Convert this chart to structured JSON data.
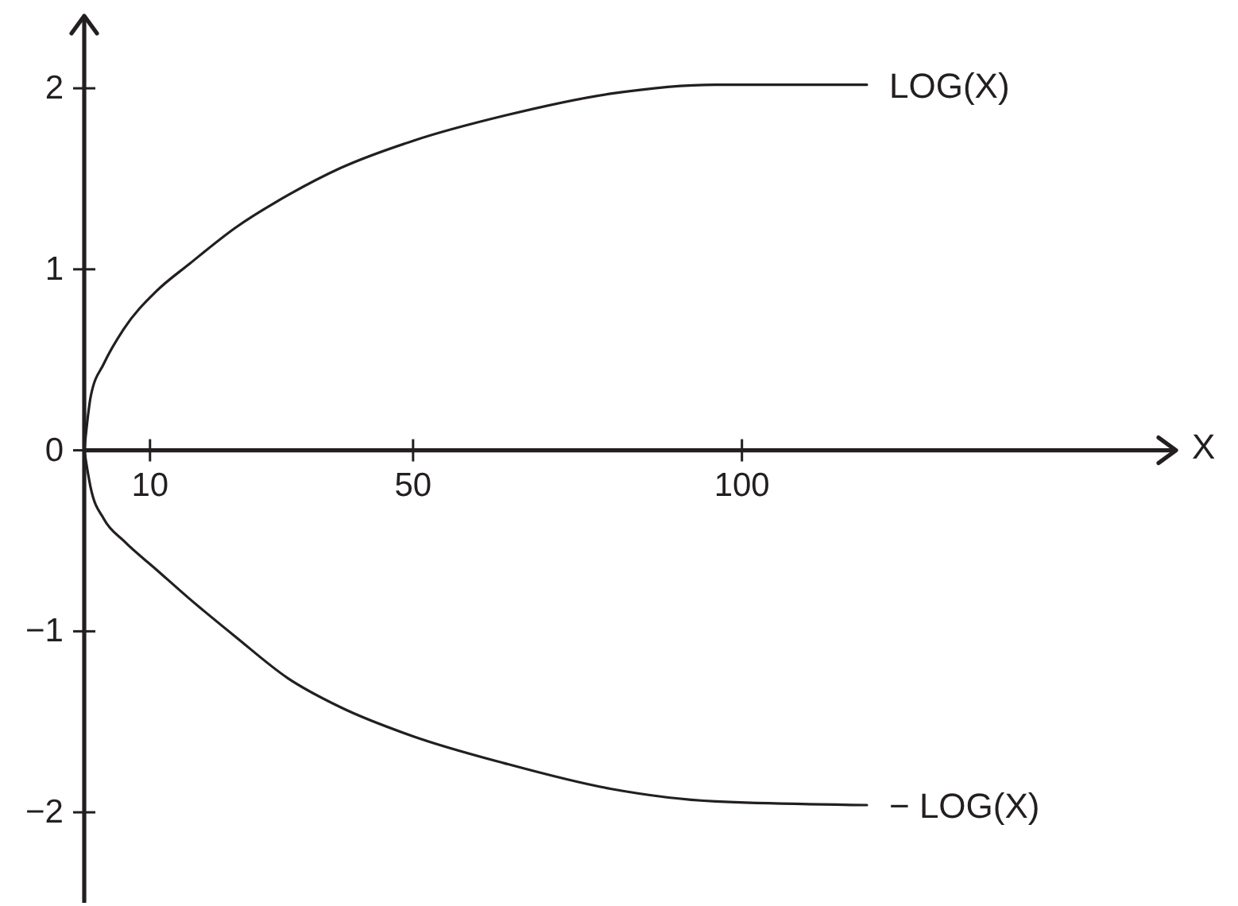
{
  "chart_data": {
    "type": "line",
    "xlabel": "X",
    "x": [
      0,
      1,
      3,
      6,
      11,
      16,
      23,
      31,
      39,
      50,
      64,
      80,
      96,
      119
    ],
    "series": [
      {
        "name": "LOG(X)",
        "color": "#231f20",
        "values": [
          0,
          0.3,
          0.48,
          0.67,
          0.88,
          1.03,
          1.23,
          1.41,
          1.56,
          1.71,
          1.85,
          1.97,
          2.02,
          2.02
        ]
      },
      {
        "name": "− LOG(X)",
        "color": "#231f20",
        "values": [
          0,
          -0.21,
          -0.38,
          -0.5,
          -0.66,
          -0.82,
          -1.03,
          -1.26,
          -1.42,
          -1.58,
          -1.73,
          -1.87,
          -1.94,
          -1.96
        ]
      }
    ],
    "xlim": [
      0,
      166
    ],
    "xticks": [
      10,
      50,
      100
    ],
    "ylim": [
      -2.5,
      2.4
    ],
    "yticks": [
      -2,
      -1,
      0,
      1,
      2
    ],
    "marker": "none",
    "line_style": "solid"
  }
}
